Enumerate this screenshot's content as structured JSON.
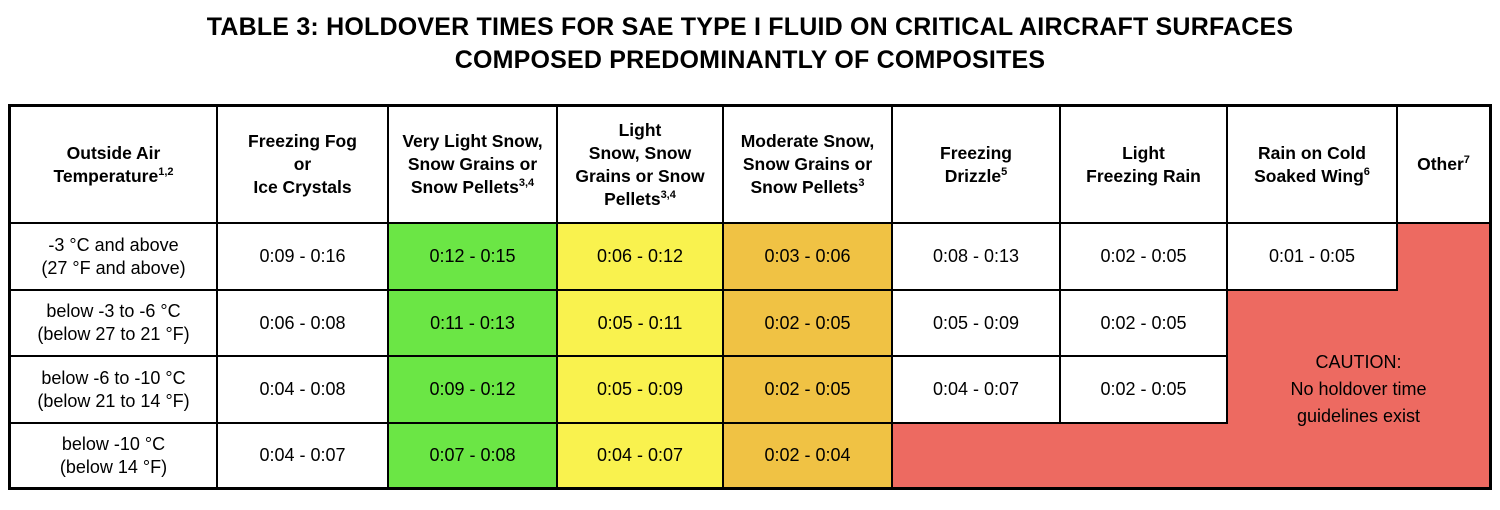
{
  "title": "TABLE 3: HOLDOVER TIMES FOR SAE TYPE I FLUID ON CRITICAL AIRCRAFT SURFACES\nCOMPOSED PREDOMINANTLY OF COMPOSITES",
  "colors": {
    "green": "#6BE645",
    "yellow": "#F9F24E",
    "orange": "#F0C244",
    "red": "#ED6A61",
    "border": "#000000"
  },
  "table": {
    "columns": [
      {
        "label": "Outside Air\nTemperature",
        "sup": "1,2"
      },
      {
        "label": "Freezing Fog\nor\nIce Crystals",
        "sup": ""
      },
      {
        "label": "Very Light Snow,\nSnow Grains or\nSnow Pellets",
        "sup": "3,4"
      },
      {
        "label": "Light\nSnow, Snow\nGrains or Snow\nPellets",
        "sup": "3,4"
      },
      {
        "label": "Moderate Snow,\nSnow Grains or\nSnow Pellets",
        "sup": "3"
      },
      {
        "label": "Freezing\nDrizzle",
        "sup": "5"
      },
      {
        "label": "Light\nFreezing Rain",
        "sup": ""
      },
      {
        "label": "Rain on Cold\nSoaked Wing",
        "sup": "6"
      },
      {
        "label": "Other",
        "sup": "7"
      }
    ],
    "rows": [
      {
        "temp": "-3 °C and above\n(27 °F and above)",
        "values": [
          {
            "text": "0:09 - 0:16",
            "color": "white"
          },
          {
            "text": "0:12 - 0:15",
            "color": "green"
          },
          {
            "text": "0:06 - 0:12",
            "color": "yellow"
          },
          {
            "text": "0:03 - 0:06",
            "color": "orange"
          },
          {
            "text": "0:08 - 0:13",
            "color": "white"
          },
          {
            "text": "0:02 - 0:05",
            "color": "white"
          },
          {
            "text": "0:01 - 0:05",
            "color": "white"
          }
        ]
      },
      {
        "temp": "below -3 to -6 °C\n(below 27 to 21 °F)",
        "values": [
          {
            "text": "0:06 - 0:08",
            "color": "white"
          },
          {
            "text": "0:11 - 0:13",
            "color": "green"
          },
          {
            "text": "0:05 - 0:11",
            "color": "yellow"
          },
          {
            "text": "0:02 - 0:05",
            "color": "orange"
          },
          {
            "text": "0:05 - 0:09",
            "color": "white"
          },
          {
            "text": "0:02 - 0:05",
            "color": "white"
          }
        ]
      },
      {
        "temp": "below -6 to -10 °C\n(below 21 to 14 °F)",
        "values": [
          {
            "text": "0:04 - 0:08",
            "color": "white"
          },
          {
            "text": "0:09 - 0:12",
            "color": "green"
          },
          {
            "text": "0:05 - 0:09",
            "color": "yellow"
          },
          {
            "text": "0:02 - 0:05",
            "color": "orange"
          },
          {
            "text": "0:04 - 0:07",
            "color": "white"
          },
          {
            "text": "0:02 - 0:05",
            "color": "white"
          }
        ]
      },
      {
        "temp": "below -10 °C\n(below 14 °F)",
        "values": [
          {
            "text": "0:04 - 0:07",
            "color": "white"
          },
          {
            "text": "0:07 - 0:08",
            "color": "green"
          },
          {
            "text": "0:04 - 0:07",
            "color": "yellow"
          },
          {
            "text": "0:02 - 0:04",
            "color": "orange"
          }
        ]
      }
    ],
    "caution": "CAUTION:\nNo holdover time\nguidelines exist"
  }
}
